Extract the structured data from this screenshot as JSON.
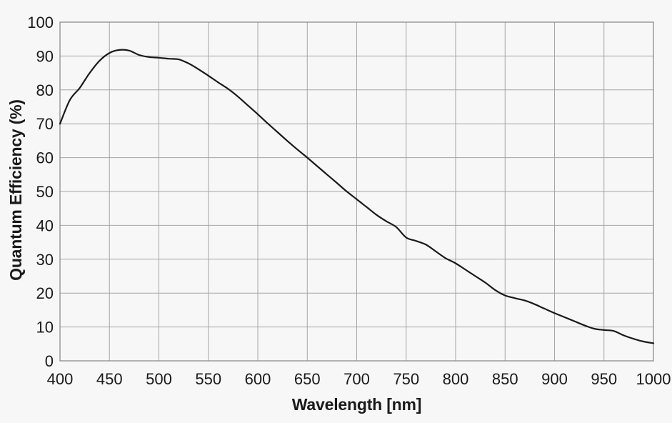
{
  "chart_data": {
    "type": "line",
    "title": "",
    "xlabel": "Wavelength [nm]",
    "ylabel": "Quantum Efficiency (%)",
    "xlim": [
      400,
      1000
    ],
    "ylim": [
      0,
      100
    ],
    "xticks": [
      400,
      450,
      500,
      550,
      600,
      650,
      700,
      750,
      800,
      850,
      900,
      950,
      1000
    ],
    "yticks": [
      0,
      10,
      20,
      30,
      40,
      50,
      60,
      70,
      80,
      90,
      100
    ],
    "grid": true,
    "legend": false,
    "series": [
      {
        "name": "Quantum Efficiency",
        "x": [
          400,
          410,
          420,
          430,
          440,
          450,
          460,
          470,
          480,
          490,
          500,
          510,
          520,
          530,
          540,
          550,
          560,
          570,
          580,
          590,
          600,
          610,
          620,
          630,
          640,
          650,
          660,
          670,
          680,
          690,
          700,
          710,
          720,
          730,
          740,
          750,
          760,
          770,
          780,
          790,
          800,
          810,
          820,
          830,
          840,
          850,
          860,
          870,
          880,
          890,
          900,
          910,
          920,
          930,
          940,
          950,
          960,
          970,
          980,
          990,
          1000
        ],
        "values": [
          70.0,
          77.0,
          80.6,
          85.0,
          88.6,
          90.9,
          91.8,
          91.6,
          90.3,
          89.7,
          89.5,
          89.2,
          89.0,
          87.8,
          86.1,
          84.2,
          82.2,
          80.3,
          78.0,
          75.4,
          72.8,
          70.1,
          67.5,
          64.9,
          62.4,
          60.0,
          57.5,
          55.0,
          52.5,
          50.0,
          47.7,
          45.4,
          43.1,
          41.2,
          39.5,
          36.4,
          35.4,
          34.3,
          32.3,
          30.3,
          28.8,
          26.9,
          25.0,
          23.1,
          20.9,
          19.3,
          18.5,
          17.8,
          16.7,
          15.4,
          14.1,
          12.9,
          11.7,
          10.5,
          9.5,
          9.1,
          8.8,
          7.5,
          6.5,
          5.7,
          5.2
        ]
      }
    ],
    "colors": {
      "background": "#f7f7f7",
      "grid": "#a6a6a6",
      "frame": "#8c8c8c",
      "line": "#1a1a1a",
      "text": "#1a1a1a"
    }
  }
}
